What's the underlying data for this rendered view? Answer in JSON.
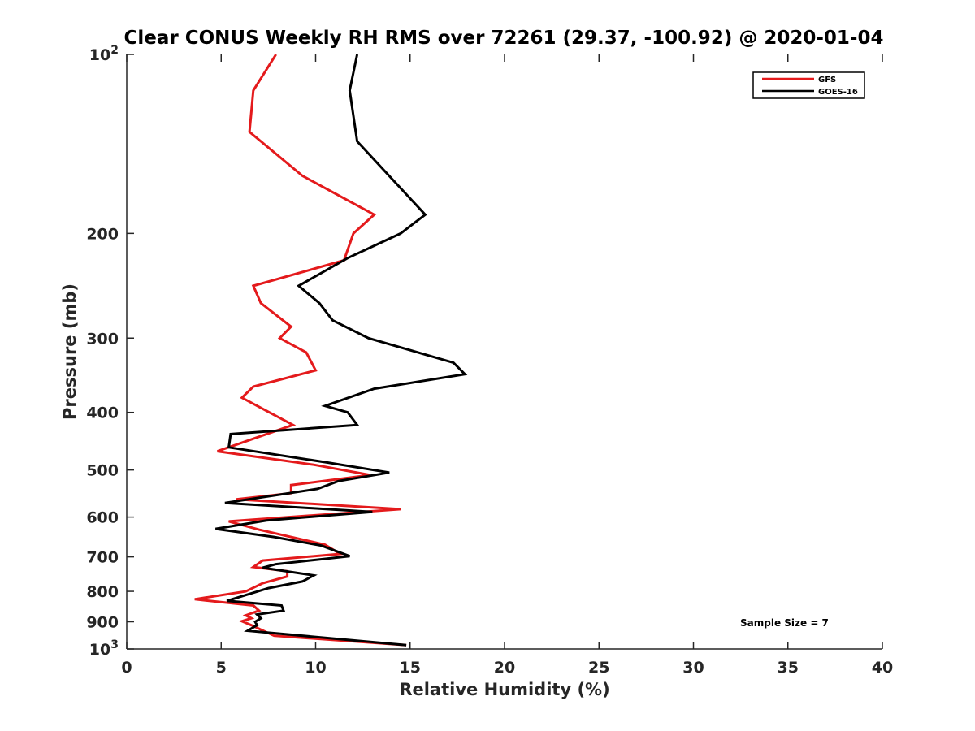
{
  "chart_data": {
    "type": "line",
    "title": "Clear CONUS Weekly RH RMS over 72261 (29.37, -100.92) @ 2020-01-04",
    "xlabel": "Relative Humidity (%)",
    "ylabel": "Pressure (mb)",
    "xlim": [
      0,
      40
    ],
    "ylim": [
      100,
      1000
    ],
    "yscale": "log",
    "y_reversed": true,
    "x_ticks": [
      "0",
      "5",
      "10",
      "15",
      "20",
      "25",
      "30",
      "35",
      "40"
    ],
    "x_tick_values": [
      0,
      5,
      10,
      15,
      20,
      25,
      30,
      35,
      40
    ],
    "y_tick_values": [
      100,
      200,
      300,
      400,
      500,
      600,
      700,
      800,
      900,
      1000
    ],
    "y_ticks": [
      {
        "base": "10",
        "exp": "2"
      },
      {
        "base": "200",
        "exp": ""
      },
      {
        "base": "300",
        "exp": ""
      },
      {
        "base": "400",
        "exp": ""
      },
      {
        "base": "500",
        "exp": ""
      },
      {
        "base": "600",
        "exp": ""
      },
      {
        "base": "700",
        "exp": ""
      },
      {
        "base": "800",
        "exp": ""
      },
      {
        "base": "900",
        "exp": ""
      },
      {
        "base": "10",
        "exp": "3"
      }
    ],
    "grid": false,
    "legend_position": "top-right",
    "annotation": "Sample Size = 7",
    "series": [
      {
        "name": "GFS",
        "color": "#e41a1c",
        "points": [
          [
            7.9,
            100
          ],
          [
            6.7,
            115
          ],
          [
            6.5,
            135
          ],
          [
            9.3,
            160
          ],
          [
            13.1,
            186
          ],
          [
            12.0,
            200
          ],
          [
            11.5,
            222
          ],
          [
            6.7,
            245
          ],
          [
            7.1,
            262
          ],
          [
            8.7,
            287
          ],
          [
            8.1,
            300
          ],
          [
            9.5,
            317
          ],
          [
            10.0,
            340
          ],
          [
            6.7,
            362
          ],
          [
            6.1,
            378
          ],
          [
            8.8,
            420
          ],
          [
            4.8,
            465
          ],
          [
            9.9,
            490
          ],
          [
            12.9,
            510
          ],
          [
            8.7,
            530
          ],
          [
            8.7,
            547
          ],
          [
            5.8,
            560
          ],
          [
            14.5,
            582
          ],
          [
            5.4,
            610
          ],
          [
            7.0,
            630
          ],
          [
            10.5,
            668
          ],
          [
            11.3,
            692
          ],
          [
            7.2,
            710
          ],
          [
            6.7,
            728
          ],
          [
            8.5,
            740
          ],
          [
            8.5,
            755
          ],
          [
            7.2,
            775
          ],
          [
            6.3,
            800
          ],
          [
            3.6,
            825
          ],
          [
            6.7,
            845
          ],
          [
            7.0,
            862
          ],
          [
            6.3,
            878
          ],
          [
            6.6,
            888
          ],
          [
            6.1,
            898
          ],
          [
            6.6,
            912
          ],
          [
            7.8,
            950
          ],
          [
            14.8,
            985
          ]
        ]
      },
      {
        "name": "GOES-16",
        "color": "#000000",
        "points": [
          [
            12.2,
            100
          ],
          [
            11.8,
            115
          ],
          [
            12.2,
            140
          ],
          [
            15.8,
            186
          ],
          [
            14.5,
            200
          ],
          [
            11.7,
            220
          ],
          [
            9.1,
            245
          ],
          [
            10.2,
            262
          ],
          [
            10.9,
            280
          ],
          [
            12.8,
            300
          ],
          [
            17.3,
            330
          ],
          [
            17.9,
            345
          ],
          [
            13.1,
            365
          ],
          [
            10.5,
            390
          ],
          [
            11.7,
            400
          ],
          [
            12.2,
            420
          ],
          [
            5.5,
            435
          ],
          [
            5.4,
            458
          ],
          [
            10.5,
            485
          ],
          [
            13.9,
            505
          ],
          [
            11.2,
            522
          ],
          [
            10.1,
            538
          ],
          [
            5.2,
            568
          ],
          [
            13.0,
            588
          ],
          [
            7.4,
            608
          ],
          [
            4.7,
            628
          ],
          [
            7.8,
            648
          ],
          [
            10.3,
            670
          ],
          [
            11.8,
            698
          ],
          [
            7.9,
            720
          ],
          [
            7.2,
            730
          ],
          [
            9.9,
            752
          ],
          [
            9.3,
            770
          ],
          [
            7.5,
            790
          ],
          [
            5.3,
            830
          ],
          [
            8.2,
            845
          ],
          [
            8.3,
            862
          ],
          [
            6.9,
            875
          ],
          [
            7.1,
            888
          ],
          [
            6.8,
            900
          ],
          [
            6.9,
            912
          ],
          [
            6.4,
            932
          ],
          [
            14.8,
            985
          ]
        ]
      }
    ]
  }
}
